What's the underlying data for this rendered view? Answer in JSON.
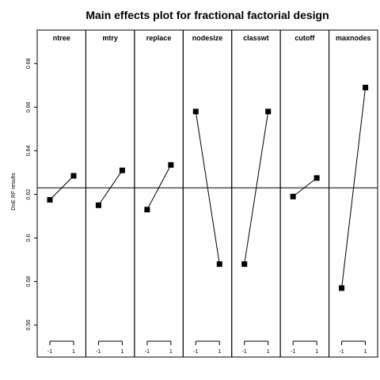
{
  "chart_data": {
    "type": "line",
    "title": "Main effects plot for fractional factorial design",
    "ylabel": "DoE RF results",
    "xlabel": "",
    "ylim": [
      0.545,
      0.695
    ],
    "yticks": [
      0.56,
      0.58,
      0.6,
      0.62,
      0.64,
      0.66,
      0.68
    ],
    "ytick_labels": [
      "0.56",
      "0.58",
      "0.6",
      "0.62",
      "0.64",
      "0.66",
      "0.68"
    ],
    "x_levels": [
      "-1",
      "1"
    ],
    "reference_line": 0.623,
    "panels": [
      {
        "name": "ntree",
        "values": [
          0.6175,
          0.6285
        ]
      },
      {
        "name": "mtry",
        "values": [
          0.615,
          0.631
        ]
      },
      {
        "name": "replace",
        "values": [
          0.613,
          0.6335
        ]
      },
      {
        "name": "nodesize",
        "values": [
          0.658,
          0.588
        ]
      },
      {
        "name": "classwt",
        "values": [
          0.588,
          0.658
        ]
      },
      {
        "name": "cutoff",
        "values": [
          0.619,
          0.6275
        ]
      },
      {
        "name": "maxnodes",
        "values": [
          0.577,
          0.669
        ]
      }
    ],
    "grid": false,
    "marker": "square",
    "colors": {
      "line": "#000000",
      "marker": "#000000",
      "background": "#ffffff"
    }
  }
}
